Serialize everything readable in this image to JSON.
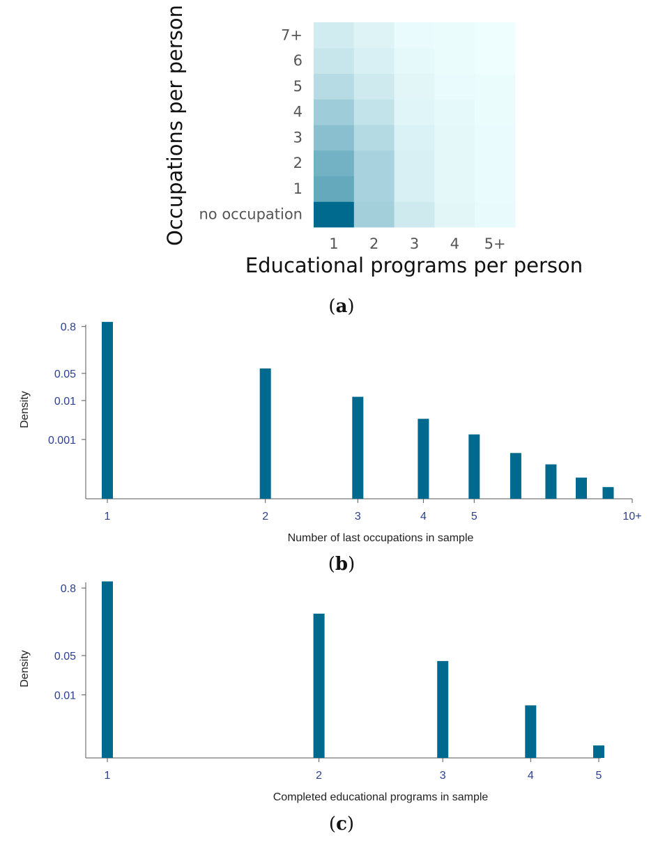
{
  "colors": {
    "bar": "#006a8e",
    "heat_low": "#f0ffff",
    "heat_high": "#006a8e",
    "tick_text_blue": "#2b3f8f",
    "heat_tick_text": "#555555",
    "axis_line": "#555555"
  },
  "chart_data": [
    {
      "type": "heatmap",
      "panel_label": "a",
      "xlabel": "Educational programs per person",
      "ylabel": "Occupations per person",
      "x_categories": [
        "1",
        "2",
        "3",
        "4",
        "5+"
      ],
      "y_categories": [
        "no occupation",
        "1",
        "2",
        "3",
        "4",
        "5",
        "6",
        "7+"
      ],
      "values": [
        [
          1.0,
          0.32,
          0.14,
          0.06,
          0.035
        ],
        [
          0.58,
          0.3,
          0.1,
          0.05,
          0.03
        ],
        [
          0.52,
          0.3,
          0.1,
          0.05,
          0.03
        ],
        [
          0.43,
          0.25,
          0.09,
          0.05,
          0.03
        ],
        [
          0.34,
          0.19,
          0.07,
          0.04,
          0.02
        ],
        [
          0.24,
          0.14,
          0.06,
          0.03,
          0.02
        ],
        [
          0.17,
          0.1,
          0.04,
          0.02,
          0.01
        ],
        [
          0.13,
          0.08,
          0.03,
          0.02,
          0.01
        ]
      ]
    },
    {
      "type": "bar",
      "panel_label": "b",
      "xlabel": "Number of last occupations in sample",
      "ylabel": "Density",
      "x_scale": "log",
      "y_scale": "log",
      "x_ticks": [
        {
          "value": 1,
          "label": "1"
        },
        {
          "value": 2,
          "label": "2"
        },
        {
          "value": 3,
          "label": "3"
        },
        {
          "value": 4,
          "label": "4"
        },
        {
          "value": 5,
          "label": "5"
        },
        {
          "value": 10,
          "label": "10+"
        }
      ],
      "y_ticks": [
        {
          "value": 0.8,
          "label": "0.8"
        },
        {
          "value": 0.05,
          "label": "0.05"
        },
        {
          "value": 0.01,
          "label": "0.01"
        },
        {
          "value": 0.001,
          "label": "0.001"
        }
      ],
      "xlim": [
        1,
        10
      ],
      "ylim": [
        3e-05,
        1.1
      ],
      "x": [
        1,
        2,
        3,
        4,
        5,
        6,
        7,
        8,
        9
      ],
      "values": [
        1.05,
        0.067,
        0.0125,
        0.0034,
        0.00135,
        0.00045,
        0.00023,
        0.000105,
        6e-05
      ]
    },
    {
      "type": "bar",
      "panel_label": "c",
      "xlabel": "Completed educational programs in sample",
      "ylabel": "Density",
      "x_scale": "log",
      "y_scale": "log",
      "x_ticks": [
        {
          "value": 1,
          "label": "1"
        },
        {
          "value": 2,
          "label": "2"
        },
        {
          "value": 3,
          "label": "3"
        },
        {
          "value": 4,
          "label": "4"
        },
        {
          "value": 5,
          "label": "5"
        }
      ],
      "y_ticks": [
        {
          "value": 0.8,
          "label": "0.8"
        },
        {
          "value": 0.05,
          "label": "0.05"
        },
        {
          "value": 0.01,
          "label": "0.01"
        }
      ],
      "xlim": [
        1,
        5
      ],
      "ylim": [
        0.00075,
        1.1
      ],
      "x": [
        1,
        2,
        3,
        4,
        5
      ],
      "values": [
        1.05,
        0.28,
        0.04,
        0.0065,
        0.00125
      ]
    }
  ]
}
